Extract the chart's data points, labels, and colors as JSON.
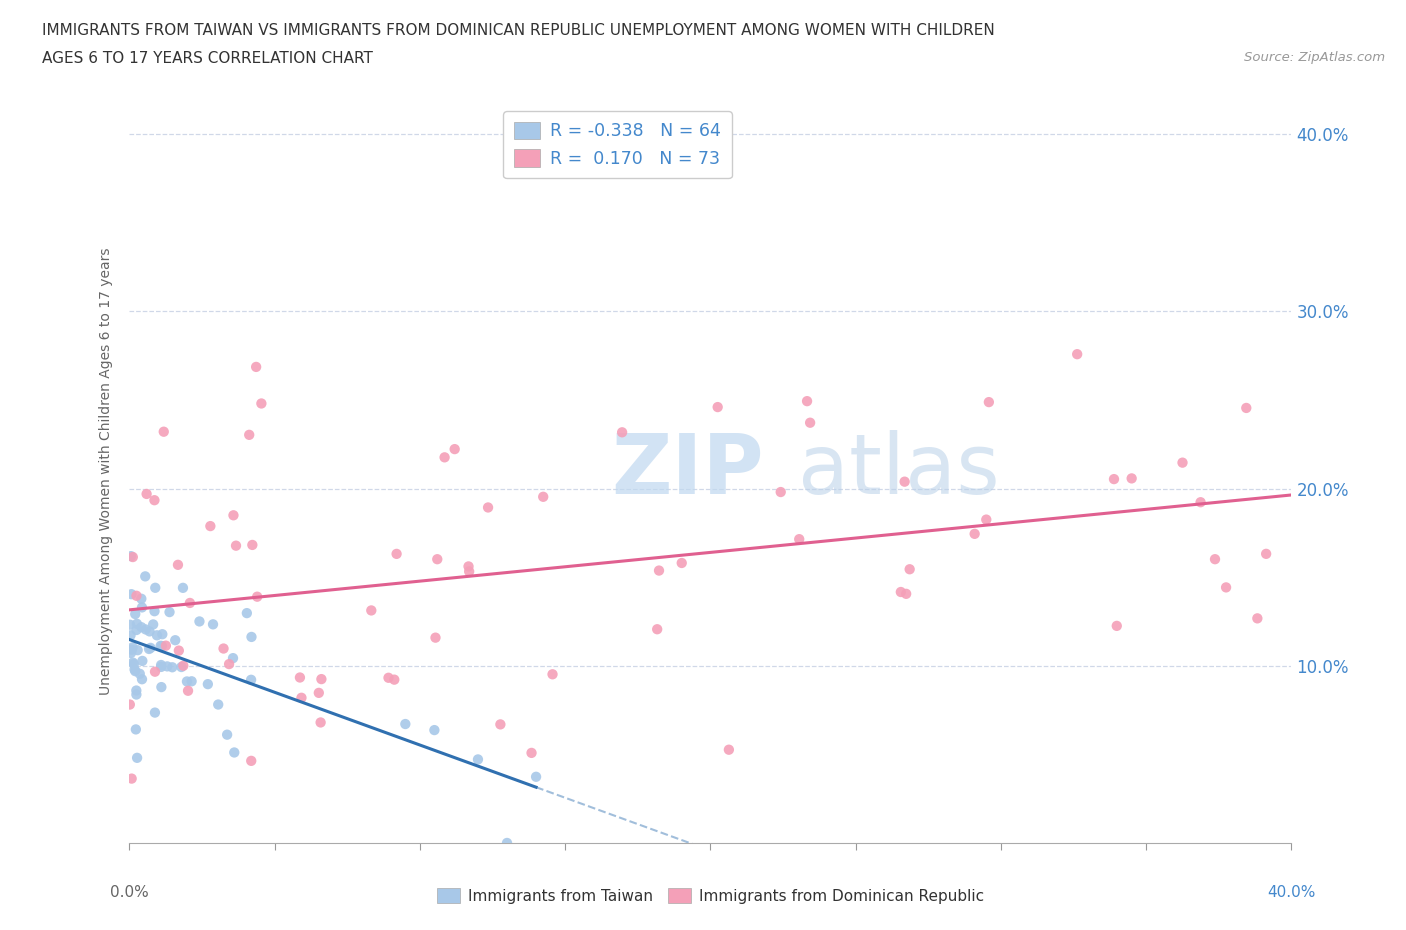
{
  "title_line1": "IMMIGRANTS FROM TAIWAN VS IMMIGRANTS FROM DOMINICAN REPUBLIC UNEMPLOYMENT AMONG WOMEN WITH CHILDREN",
  "title_line2": "AGES 6 TO 17 YEARS CORRELATION CHART",
  "source_text": "Source: ZipAtlas.com",
  "ylabel": "Unemployment Among Women with Children Ages 6 to 17 years",
  "xlabel_taiwan": "Immigrants from Taiwan",
  "xlabel_dr": "Immigrants from Dominican Republic",
  "watermark_zip": "ZIP",
  "watermark_atlas": "atlas",
  "taiwan_R": -0.338,
  "taiwan_N": 64,
  "dr_R": 0.17,
  "dr_N": 73,
  "taiwan_color": "#a8c8e8",
  "dr_color": "#f4a0b8",
  "taiwan_line_color": "#3070b0",
  "dr_line_color": "#e06090",
  "xmin": 0.0,
  "xmax": 0.4,
  "ymin": 0.0,
  "ymax": 0.42,
  "ytick_vals": [
    0.0,
    0.1,
    0.2,
    0.3,
    0.4
  ],
  "ytick_labels": [
    "",
    "10.0%",
    "20.0%",
    "30.0%",
    "40.0%"
  ],
  "grid_color": "#d0d8e8",
  "background_color": "#ffffff",
  "legend_r_color": "#4488cc",
  "legend_n_color": "#4488cc",
  "axis_label_color": "#4488cc",
  "title_color": "#333333",
  "source_color": "#999999"
}
